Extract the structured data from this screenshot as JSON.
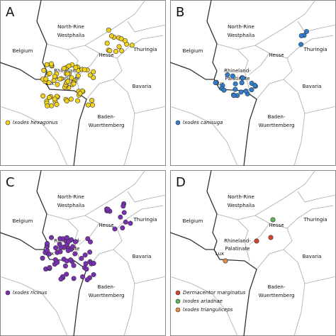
{
  "regions": [
    "North-Rine",
    "Westphalia",
    "Belgium",
    "Rhineland-",
    "Palatinate",
    "Hesse",
    "Thuringia",
    "Bavaria",
    "Baden-",
    "Wuerttemberg",
    "Lux"
  ],
  "panels": [
    {
      "letter": "A",
      "legend": [
        "Ixodes hexagonus"
      ]
    },
    {
      "letter": "B",
      "legend": [
        "Ixodes canisuga"
      ]
    },
    {
      "letter": "C",
      "legend": [
        "Ixodes ricinus"
      ]
    },
    {
      "letter": "D",
      "legend": [
        "Dermacentor marginatus",
        "Ixodes ariadnae",
        "Ixodes trianguliceps"
      ]
    }
  ]
}
